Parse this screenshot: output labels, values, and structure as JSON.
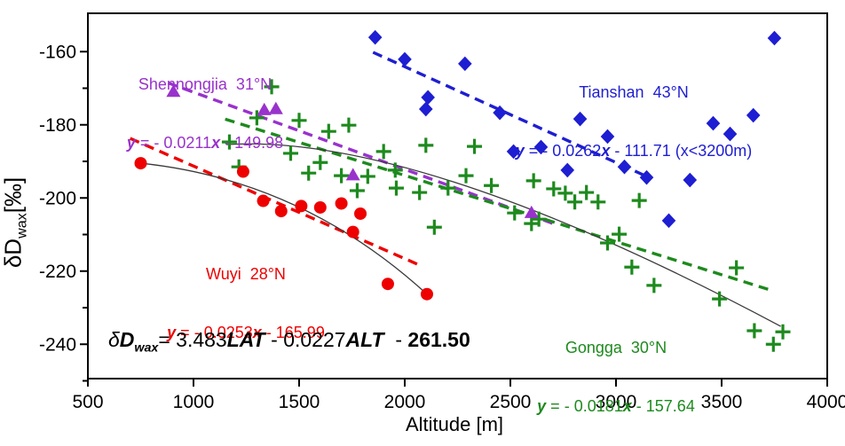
{
  "figure": {
    "x_title": "Altitude [m]",
    "y_title": {
      "prefix": "δD",
      "sub": "wax",
      "suffix": "[‰]"
    },
    "main_equation": {
      "delta": "δ",
      "D": "D",
      "sub": "wax",
      "p1": "= 3.483",
      "LAT": "LAT",
      "p2": " - 0.0227",
      "ALT": "ALT",
      "p3": "  - ",
      "C": "261.50"
    }
  },
  "chart_data": {
    "type": "scatter",
    "title": "",
    "xlabel": "Altitude [m]",
    "ylabel": "δDwax[‰]",
    "xlim": [
      500,
      4000
    ],
    "ylim": [
      -250,
      -150
    ],
    "grid": false,
    "frame": true,
    "legend_position": "inline-annotations",
    "x_ticks": [
      500,
      1000,
      1500,
      2000,
      2500,
      3000,
      3500,
      4000
    ],
    "y_ticks_major": [
      -160,
      -180,
      -200,
      -220,
      -240
    ],
    "y_ticks_minor": [
      -170,
      -190,
      -210,
      -230,
      -250
    ],
    "axis_color": "#000000",
    "fit_curve_color": "#3a3a3a",
    "series": [
      {
        "id": "wuyi",
        "label": "Wuyi  28°N",
        "marker": "circle",
        "color": "#ee0000",
        "regression": {
          "slope": -0.0253,
          "intercept": -165.99,
          "text": {
            "y": "y",
            "mid": " = - 0.0253",
            "x": "x",
            "rest": " - 165.99"
          }
        },
        "trend_range": [
          700,
          2075
        ],
        "points": [
          [
            750,
            -190.5
          ],
          [
            1235,
            -192.8
          ],
          [
            1330,
            -200.8
          ],
          [
            1415,
            -203.6
          ],
          [
            1510,
            -202.2
          ],
          [
            1600,
            -202.6
          ],
          [
            1700,
            -201.5
          ],
          [
            1755,
            -209.3
          ],
          [
            1790,
            -204.3
          ],
          [
            1920,
            -223.5
          ],
          [
            2105,
            -226.3
          ]
        ]
      },
      {
        "id": "shennongjia",
        "label": "Shennongjia  31°N",
        "marker": "triangle",
        "color": "#9932cc",
        "regression": {
          "slope": -0.0211,
          "intercept": -149.98,
          "text": {
            "y": "y",
            "mid": " = - 0.0211",
            "x": "x",
            "rest": " - 149.98"
          }
        },
        "trend_range": [
          880,
          2700
        ],
        "points": [
          [
            905,
            -170.8
          ],
          [
            1335,
            -175.8
          ],
          [
            1390,
            -175.5
          ],
          [
            1755,
            -193.6
          ],
          [
            2600,
            -203.9
          ]
        ]
      },
      {
        "id": "tianshan",
        "label": "Tianshan  43°N",
        "marker": "diamond",
        "color": "#1e1ed2",
        "regression": {
          "slope": -0.0262,
          "intercept": -111.71,
          "text": {
            "y": "y",
            "mid": " = - 0.0262",
            "x": "x",
            "rest": " - 111.71 (x<3200m)"
          }
        },
        "trend_range": [
          1850,
          3160
        ],
        "points": [
          [
            1860,
            -156.1
          ],
          [
            2000,
            -162.1
          ],
          [
            2100,
            -175.7
          ],
          [
            2110,
            -172.5
          ],
          [
            2285,
            -163.3
          ],
          [
            2450,
            -176.7
          ],
          [
            2515,
            -187.3
          ],
          [
            2645,
            -186.1
          ],
          [
            2770,
            -192.4
          ],
          [
            2830,
            -178.4
          ],
          [
            2960,
            -183.2
          ],
          [
            3040,
            -191.5
          ],
          [
            3145,
            -194.4
          ],
          [
            3250,
            -206.2
          ],
          [
            3350,
            -195.1
          ],
          [
            3460,
            -179.6
          ],
          [
            3540,
            -182.5
          ],
          [
            3650,
            -177.4
          ],
          [
            3750,
            -156.3
          ]
        ]
      },
      {
        "id": "gongga",
        "label": "Gongga  30°N",
        "marker": "plus",
        "color": "#1d8a1d",
        "regression": {
          "slope": -0.0181,
          "intercept": -157.64,
          "text": {
            "y": "y",
            "mid": " = - 0.0181",
            "x": "x",
            "rest": " - 157.64"
          }
        },
        "trend_range": [
          1150,
          3740
        ],
        "points": [
          [
            1170,
            -184.7
          ],
          [
            1215,
            -191.5
          ],
          [
            1300,
            -178.1
          ],
          [
            1370,
            -169.6
          ],
          [
            1460,
            -187.8
          ],
          [
            1500,
            -178.8
          ],
          [
            1545,
            -193.2
          ],
          [
            1600,
            -190.3
          ],
          [
            1640,
            -181.8
          ],
          [
            1700,
            -193.9
          ],
          [
            1735,
            -180.1
          ],
          [
            1775,
            -198.0
          ],
          [
            1825,
            -194.1
          ],
          [
            1900,
            -187.3
          ],
          [
            1955,
            -192.4
          ],
          [
            1960,
            -197.3
          ],
          [
            2070,
            -198.5
          ],
          [
            2100,
            -185.6
          ],
          [
            2140,
            -208.0
          ],
          [
            2205,
            -197.3
          ],
          [
            2290,
            -193.9
          ],
          [
            2330,
            -185.9
          ],
          [
            2410,
            -196.6
          ],
          [
            2520,
            -204.1
          ],
          [
            2600,
            -207.0
          ],
          [
            2610,
            -195.3
          ],
          [
            2635,
            -205.8
          ],
          [
            2705,
            -197.5
          ],
          [
            2760,
            -198.7
          ],
          [
            2805,
            -201.1
          ],
          [
            2860,
            -198.5
          ],
          [
            2915,
            -201.1
          ],
          [
            2960,
            -212.3
          ],
          [
            3015,
            -209.9
          ],
          [
            3075,
            -218.9
          ],
          [
            3110,
            -200.7
          ],
          [
            3180,
            -223.9
          ],
          [
            3490,
            -227.6
          ],
          [
            3570,
            -219.1
          ],
          [
            3655,
            -236.3
          ],
          [
            3745,
            -240.0
          ],
          [
            3790,
            -236.6
          ]
        ]
      }
    ],
    "fit_curves": [
      {
        "series": "wuyi",
        "shape": "quadratic",
        "p0": [
          750,
          -190.5
        ],
        "c": [
          1513,
          -195.1
        ],
        "p1": [
          2105,
          -226.3
        ]
      },
      {
        "series": "gongga",
        "shape": "quadratic",
        "p0": [
          1155,
          -185.4
        ],
        "c": [
          2060,
          -182.2
        ],
        "p1": [
          3780,
          -235.1
        ]
      }
    ]
  }
}
